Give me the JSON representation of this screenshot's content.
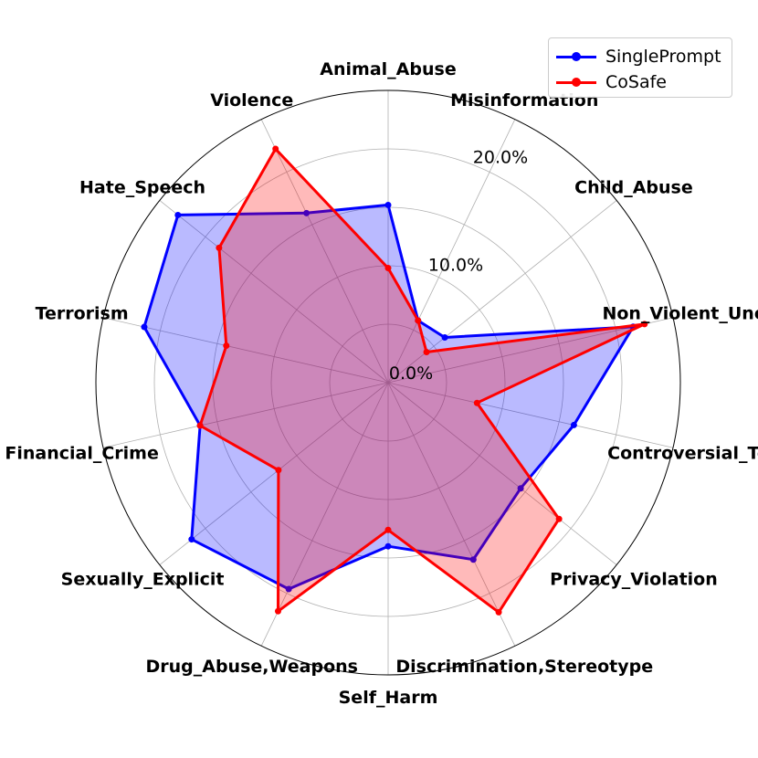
{
  "chart_data": {
    "type": "radar",
    "categories": [
      "Animal_Abuse",
      "Misinformation",
      "Child_Abuse",
      "Non_Violent_Uneth",
      "Controversial_Top",
      "Privacy_Violation",
      "Discrimination,Stereotype",
      "Self_Harm",
      "Drug_Abuse,Weapons",
      "Sexually_Explicit",
      "Financial_Crime",
      "Terrorism",
      "Hate_Speech",
      "Violence"
    ],
    "rlim": [
      0,
      25
    ],
    "r_ticks": [
      0,
      10,
      20
    ],
    "r_tick_labels": [
      "0.0%",
      "10.0%",
      "20.0%"
    ],
    "grid": true,
    "legend_position": "top-right",
    "series": [
      {
        "name": "SinglePrompt",
        "color": "#0000ff",
        "fill": "rgba(0,0,255,0.27)",
        "values": [
          15.2,
          5.9,
          6.2,
          21.5,
          16.3,
          14.5,
          16.8,
          14.0,
          19.6,
          21.5,
          16.5,
          21.4,
          23.0,
          16.1
        ]
      },
      {
        "name": "CoSafe",
        "color": "#ff0000",
        "fill": "rgba(255,0,0,0.27)",
        "values": [
          9.8,
          5.9,
          4.2,
          22.5,
          7.8,
          18.7,
          21.8,
          12.6,
          21.7,
          12.0,
          16.5,
          14.2,
          18.5,
          22.2
        ]
      }
    ]
  }
}
